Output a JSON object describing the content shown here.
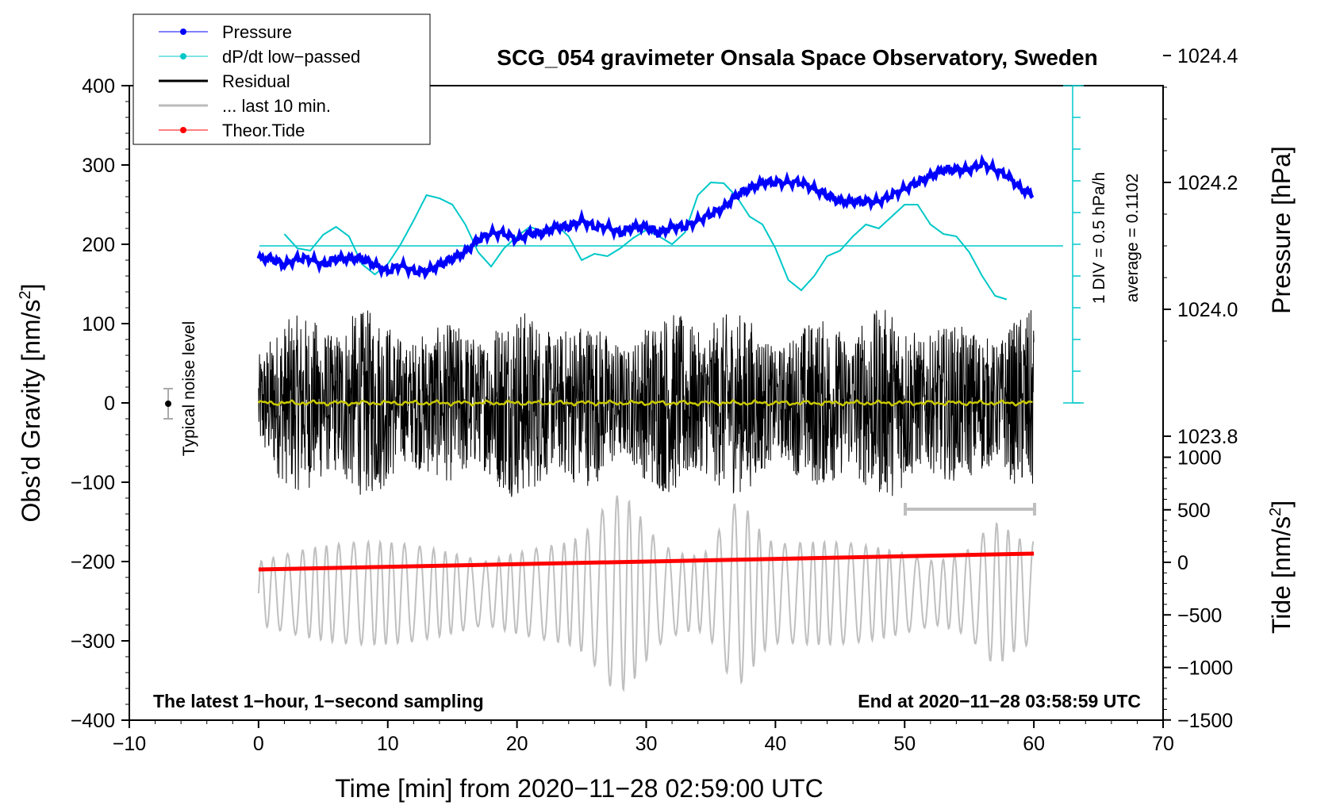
{
  "chart_data": {
    "type": "line",
    "title": "SCG_054 gravimeter Onsala Space Observatory, Sweden",
    "xlabel": "Time [min] from 2020−11−28 02:59:00 UTC",
    "ylabel": "Obs’d Gravity [nm/s",
    "ylabel_sup": "2",
    "ylabel_close": "]",
    "ylabel_right_top": "Pressure [hPa]",
    "ylabel_right_bottom": "Tide [nm/s",
    "ylabel_right_bottom_sup": "2",
    "ylabel_right_bottom_close": "]",
    "xlim": [
      -10,
      70
    ],
    "ylim": [
      -400,
      400
    ],
    "x_ticks": [
      "−10",
      "0",
      "10",
      "20",
      "30",
      "40",
      "50",
      "60",
      "70"
    ],
    "y_ticks": [
      "400",
      "300",
      "200",
      "100",
      "0",
      "−100",
      "−200",
      "−300",
      "−400"
    ],
    "pressure_ticks": [
      "1024.4",
      "1024.2",
      "1024.0",
      "1023.8"
    ],
    "tide_ticks": [
      "1000",
      "500",
      "0",
      "−500",
      "−1000",
      "−1500"
    ],
    "legend": [
      {
        "label": "Pressure",
        "color": "#0000ff",
        "marker": true
      },
      {
        "label": "dP/dt low−passed",
        "color": "#00c8c8",
        "marker": true
      },
      {
        "label": "Residual",
        "color": "#000000",
        "marker": false
      },
      {
        "label": "... last 10 min.",
        "color": "#bbbbbb",
        "marker": false
      },
      {
        "label": "Theor.Tide",
        "color": "#ff0000",
        "marker": true
      }
    ],
    "annotations": {
      "left_bottom": "The latest 1−hour, 1−second sampling",
      "right_bottom": "End at 2020−11−28 03:58:59 UTC",
      "noise_label": "Typical noise level",
      "div_label": "1 DIV = 0.5 hPa/h",
      "average_label": "average = 0.1102"
    },
    "series": [
      {
        "name": "Pressure",
        "color": "#0000ff",
        "units": "hPa",
        "x": [
          0,
          1,
          2,
          3,
          4,
          5,
          6,
          7,
          8,
          9,
          10,
          11,
          12,
          13,
          14,
          15,
          16,
          17,
          18,
          19,
          20,
          21,
          22,
          23,
          24,
          25,
          26,
          27,
          28,
          29,
          30,
          31,
          32,
          33,
          34,
          35,
          36,
          37,
          38,
          39,
          40,
          41,
          42,
          43,
          44,
          45,
          46,
          47,
          48,
          49,
          50,
          51,
          52,
          53,
          54,
          55,
          56,
          57,
          58,
          59,
          60
        ],
        "values": [
          1024.08,
          1024.08,
          1024.07,
          1024.08,
          1024.08,
          1024.07,
          1024.08,
          1024.08,
          1024.08,
          1024.07,
          1024.06,
          1024.07,
          1024.06,
          1024.06,
          1024.07,
          1024.08,
          1024.09,
          1024.11,
          1024.12,
          1024.12,
          1024.11,
          1024.12,
          1024.12,
          1024.13,
          1024.13,
          1024.14,
          1024.13,
          1024.13,
          1024.12,
          1024.13,
          1024.13,
          1024.12,
          1024.13,
          1024.13,
          1024.14,
          1024.15,
          1024.16,
          1024.18,
          1024.19,
          1024.2,
          1024.2,
          1024.2,
          1024.2,
          1024.19,
          1024.18,
          1024.17,
          1024.17,
          1024.17,
          1024.17,
          1024.18,
          1024.19,
          1024.2,
          1024.21,
          1024.22,
          1024.22,
          1024.22,
          1024.23,
          1024.22,
          1024.21,
          1024.19,
          1024.18
        ]
      },
      {
        "name": "dP/dt low−passed",
        "color": "#00c8c8",
        "units": "nm/s2 (plotted)",
        "x": [
          2,
          3,
          4,
          5,
          6,
          7,
          8,
          9,
          10,
          11,
          12,
          13,
          14,
          15,
          16,
          17,
          18,
          19,
          20,
          21,
          22,
          23,
          24,
          25,
          26,
          27,
          28,
          29,
          30,
          31,
          32,
          33,
          34,
          35,
          36,
          37,
          38,
          39,
          40,
          41,
          42,
          43,
          44,
          45,
          46,
          47,
          48,
          49,
          50,
          51,
          52,
          53,
          54,
          55,
          56,
          57,
          58
        ],
        "values": [
          213,
          195,
          192,
          212,
          222,
          210,
          175,
          162,
          175,
          200,
          230,
          262,
          258,
          250,
          225,
          190,
          172,
          195,
          210,
          222,
          216,
          225,
          210,
          180,
          188,
          185,
          195,
          208,
          218,
          210,
          200,
          215,
          262,
          278,
          277,
          260,
          235,
          225,
          195,
          155,
          142,
          160,
          185,
          192,
          210,
          225,
          220,
          235,
          250,
          250,
          225,
          213,
          210,
          190,
          160,
          135,
          130
        ]
      },
      {
        "name": "Theor.Tide",
        "color": "#ff0000",
        "units": "nm/s2",
        "x": [
          0,
          60
        ],
        "values": [
          -210,
          -190
        ]
      }
    ]
  }
}
